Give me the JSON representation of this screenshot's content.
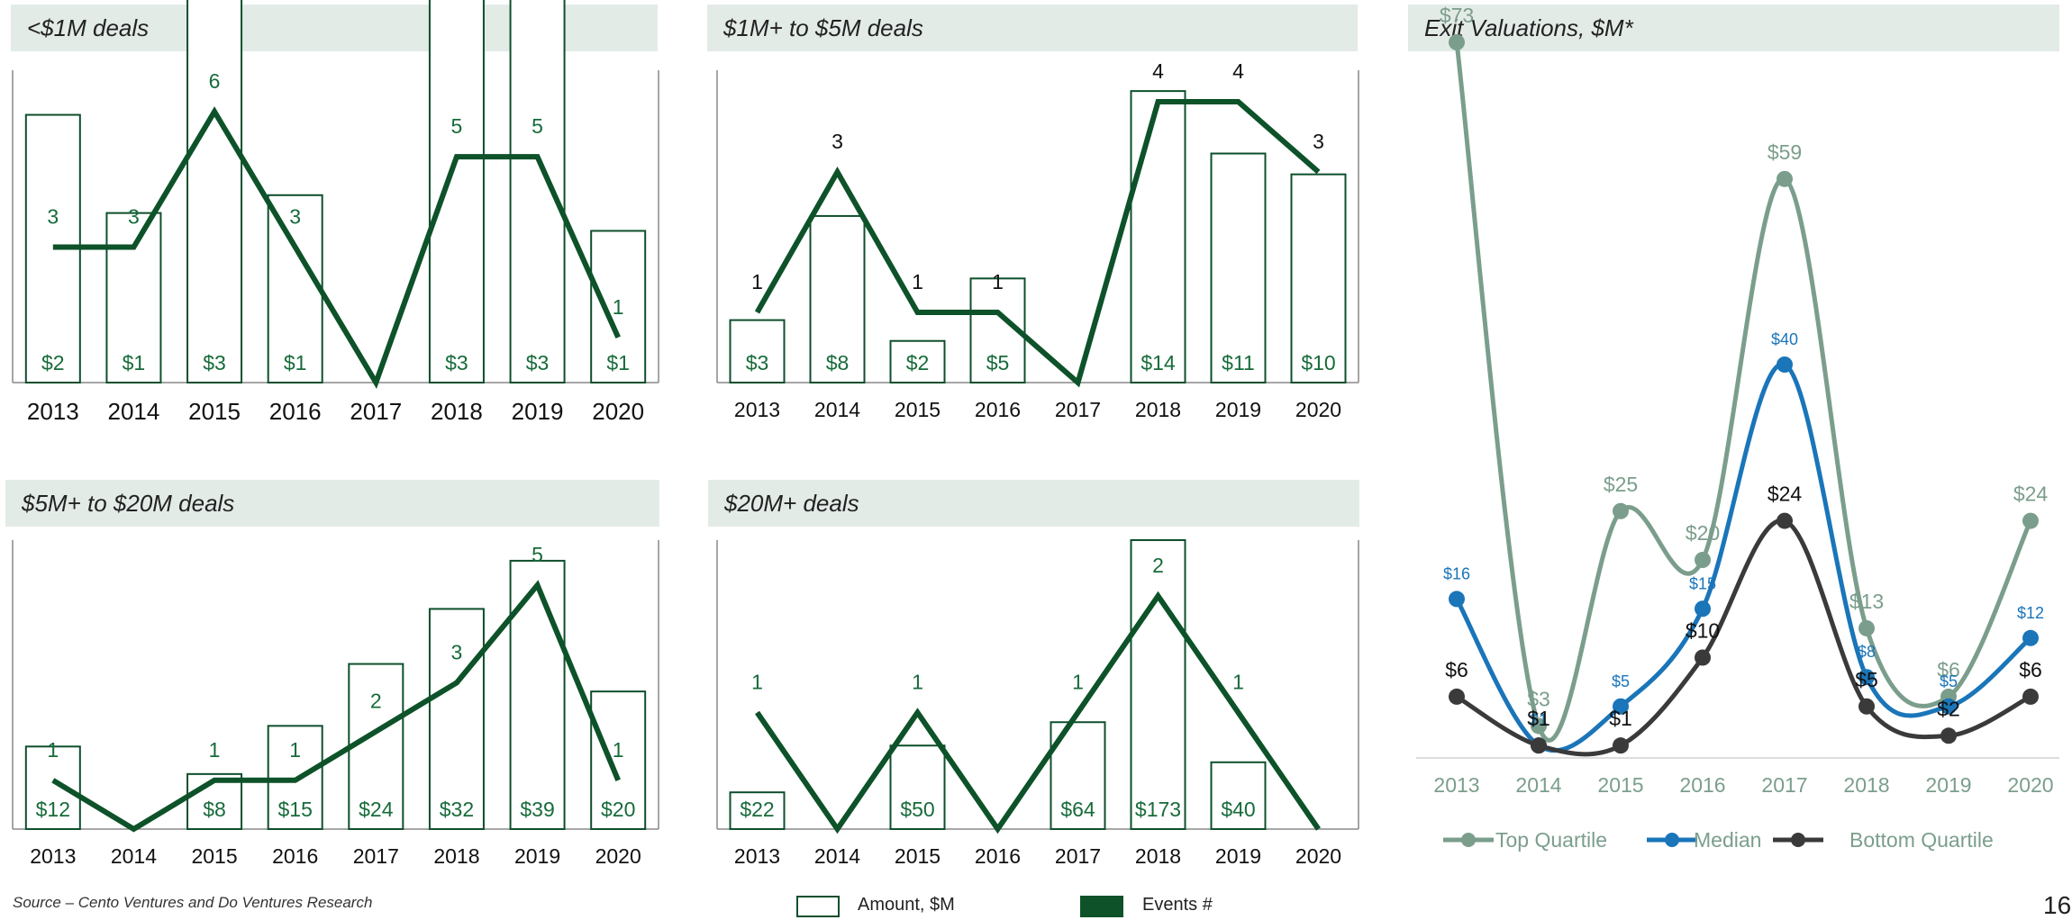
{
  "colors": {
    "bar_outline": "#0e4f2c",
    "line": "#0d5229",
    "label_green": "#176b3a",
    "text": "#111111",
    "axis": "#888888",
    "top_quartile": "#7b9e8c",
    "median": "#1a75b9",
    "bottom_quartile": "#3a3a3a"
  },
  "footer": {
    "source": "Source – Cento Ventures and Do Ventures Research",
    "page_number": "16"
  },
  "legend": {
    "amount": "Amount, $M",
    "events": "Events #"
  },
  "chart_data": [
    {
      "id": "lt1m",
      "type": "bar+line",
      "title": "<$1M deals",
      "categories": [
        "2013",
        "2014",
        "2015",
        "2016",
        "2017",
        "2018",
        "2019",
        "2020"
      ],
      "series": [
        {
          "name": "Amount, $M",
          "type": "bar",
          "values": [
            2,
            1,
            3,
            1,
            0,
            3,
            3,
            1
          ],
          "labels": [
            "$2",
            "$1",
            "$3",
            "$1",
            "",
            "$3",
            "$3",
            "$1"
          ]
        },
        {
          "name": "Events #",
          "type": "line",
          "values": [
            3,
            3,
            6,
            3,
            0,
            5,
            5,
            1
          ],
          "labels": [
            "3",
            "3",
            "6",
            "3",
            "",
            "5",
            "5",
            "1"
          ]
        }
      ],
      "bar_heights_ref": [
        3.0,
        1.9,
        5.1,
        2.1,
        0,
        5.9,
        4.4,
        1.7
      ],
      "label_color": "green"
    },
    {
      "id": "1to5",
      "type": "bar+line",
      "title": "$1M+ to $5M deals",
      "categories": [
        "2013",
        "2014",
        "2015",
        "2016",
        "2017",
        "2018",
        "2019",
        "2020"
      ],
      "series": [
        {
          "name": "Amount, $M",
          "type": "bar",
          "values": [
            3,
            8,
            2,
            5,
            0,
            14,
            11,
            10
          ],
          "labels": [
            "$3",
            "$8",
            "$2",
            "$5",
            "",
            "$14",
            "$11",
            "$10"
          ]
        },
        {
          "name": "Events #",
          "type": "line",
          "values": [
            1,
            3,
            1,
            1,
            0,
            4,
            4,
            3
          ],
          "labels": [
            "1",
            "3",
            "1",
            "1",
            "",
            "4",
            "4",
            "3"
          ]
        }
      ],
      "label_color": "black"
    },
    {
      "id": "5to20",
      "type": "bar+line",
      "title": "$5M+ to $20M deals",
      "categories": [
        "2013",
        "2014",
        "2015",
        "2016",
        "2017",
        "2018",
        "2019",
        "2020"
      ],
      "series": [
        {
          "name": "Amount, $M",
          "type": "bar",
          "values": [
            12,
            0,
            8,
            15,
            24,
            32,
            39,
            20
          ],
          "labels": [
            "$12",
            "",
            "$8",
            "$15",
            "$24",
            "$32",
            "$39",
            "$20"
          ]
        },
        {
          "name": "Events #",
          "type": "line",
          "values": [
            1,
            0,
            1,
            1,
            2,
            3,
            5,
            1
          ],
          "labels": [
            "1",
            "",
            "1",
            "1",
            "2",
            "3",
            "5",
            "1"
          ]
        }
      ],
      "label_color": "green"
    },
    {
      "id": "gt20",
      "type": "bar+line",
      "title": "$20M+ deals",
      "categories": [
        "2013",
        "2014",
        "2015",
        "2016",
        "2017",
        "2018",
        "2019",
        "2020"
      ],
      "series": [
        {
          "name": "Amount, $M",
          "type": "bar",
          "values": [
            22,
            0,
            50,
            0,
            64,
            173,
            40,
            0
          ],
          "labels": [
            "$22",
            "",
            "$50",
            "",
            "$64",
            "$173",
            "$40",
            ""
          ]
        },
        {
          "name": "Events #",
          "type": "line",
          "values": [
            1,
            0,
            1,
            0,
            1,
            2,
            1,
            0
          ],
          "labels": [
            "1",
            "",
            "1",
            "",
            "1",
            "2",
            "1",
            ""
          ]
        }
      ],
      "label_color": "green"
    },
    {
      "id": "exit",
      "type": "line",
      "title": "Exit Valuations, $M*",
      "categories": [
        "2013",
        "2014",
        "2015",
        "2016",
        "2017",
        "2018",
        "2019",
        "2020"
      ],
      "series": [
        {
          "name": "Top Quartile",
          "values": [
            73,
            3,
            25,
            20,
            59,
            13,
            6,
            24
          ],
          "labels": [
            "$73",
            "$3",
            "$25",
            "$20",
            "$59",
            "$13",
            "$6",
            "$24"
          ]
        },
        {
          "name": "Median",
          "values": [
            16,
            1,
            5,
            15,
            40,
            8,
            5,
            12
          ],
          "labels": [
            "$16",
            "$1",
            "$5",
            "$15",
            "$40",
            "$8",
            "$5",
            "$12"
          ]
        },
        {
          "name": "Bottom Quartile",
          "values": [
            6,
            1,
            1,
            10,
            24,
            5,
            2,
            6
          ],
          "labels": [
            "$6",
            "$1",
            "$1",
            "$10",
            "$24",
            "$5",
            "$2",
            "$6"
          ]
        }
      ],
      "legend_position": "bottom"
    }
  ]
}
